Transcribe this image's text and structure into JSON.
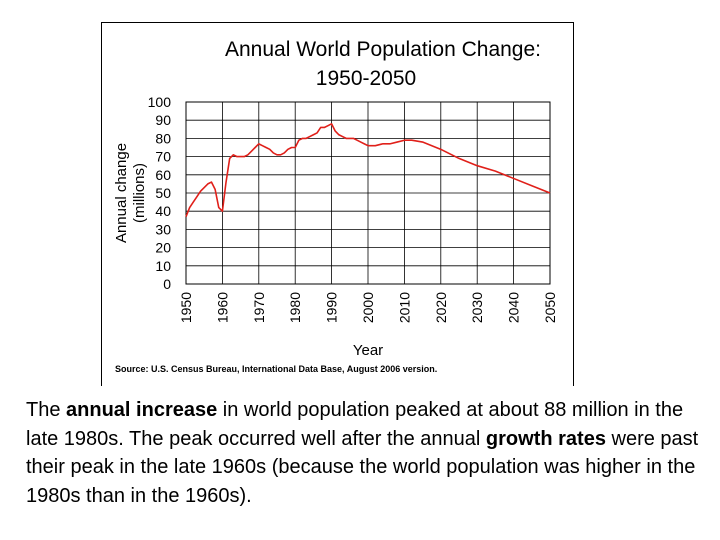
{
  "chart_data": {
    "type": "line",
    "title_line1": "Annual World Population Change:",
    "title_line2": "1950-2050",
    "xlabel": "Year",
    "ylabel_line1": "Annual change",
    "ylabel_line2": "(millions)",
    "xlim": [
      1950,
      2050
    ],
    "ylim": [
      0,
      100
    ],
    "x_ticks": [
      "1950",
      "1960",
      "1970",
      "1980",
      "1990",
      "2000",
      "2010",
      "2020",
      "2030",
      "2040",
      "2050"
    ],
    "y_ticks": [
      "100",
      "90",
      "80",
      "70",
      "60",
      "50",
      "40",
      "30",
      "20",
      "10",
      "0"
    ],
    "grid": true,
    "line_color": "#e0201a",
    "series": [
      {
        "name": "Annual change",
        "x": [
          1950,
          1951,
          1952,
          1953,
          1954,
          1955,
          1956,
          1957,
          1958,
          1959,
          1960,
          1961,
          1962,
          1963,
          1964,
          1965,
          1966,
          1967,
          1968,
          1969,
          1970,
          1971,
          1972,
          1973,
          1974,
          1975,
          1976,
          1977,
          1978,
          1979,
          1980,
          1981,
          1982,
          1983,
          1984,
          1985,
          1986,
          1987,
          1988,
          1989,
          1990,
          1991,
          1992,
          1993,
          1994,
          1995,
          1996,
          1997,
          1998,
          1999,
          2000,
          2002,
          2004,
          2006,
          2008,
          2010,
          2012,
          2015,
          2020,
          2025,
          2030,
          2035,
          2040,
          2045,
          2050
        ],
        "y": [
          37,
          42,
          45,
          48,
          51,
          53,
          55,
          56,
          52,
          42,
          40,
          56,
          69,
          71,
          70,
          70,
          70,
          71,
          73,
          75,
          77,
          76,
          75,
          74,
          72,
          71,
          71,
          72,
          74,
          75,
          75,
          79,
          80,
          80,
          81,
          82,
          83,
          86,
          86,
          87,
          88,
          84,
          82,
          81,
          80,
          80,
          80,
          79,
          78,
          77,
          76,
          76,
          77,
          77,
          78,
          79,
          79,
          78,
          74,
          69,
          65,
          62,
          58,
          54,
          50
        ]
      }
    ]
  },
  "source_text": "Source: U.S. Census Bureau, International Data Base, August 2006 version.",
  "caption": {
    "t1": "The ",
    "b1": "annual increase",
    "t2": " in world population peaked at about 88 million in the late 1980s. The peak occurred well after the annual ",
    "b2": "growth rates",
    "t3": " were past their peak in the late 1960s (because the world population was higher in the 1980s than in the 1960s)."
  }
}
